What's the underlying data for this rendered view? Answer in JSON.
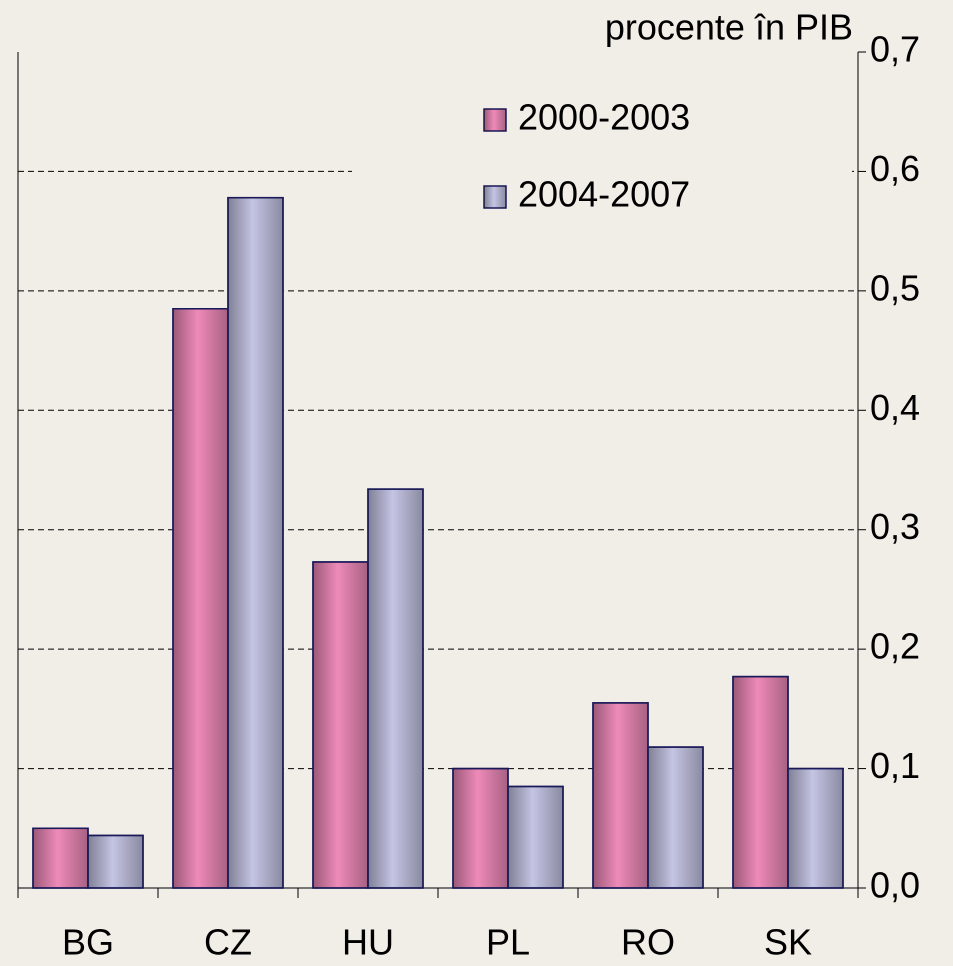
{
  "chart_data": {
    "type": "bar",
    "y_axis_label": "procente în PIB",
    "categories": [
      "BG",
      "CZ",
      "HU",
      "PL",
      "RO",
      "SK"
    ],
    "series": [
      {
        "name": "2000-2003",
        "color": "#ee8ab9",
        "values": [
          0.05,
          0.485,
          0.273,
          0.1,
          0.155,
          0.177
        ]
      },
      {
        "name": "2004-2007",
        "color": "#c4c4e4",
        "values": [
          0.044,
          0.578,
          0.334,
          0.085,
          0.118,
          0.1
        ]
      }
    ],
    "ylim": [
      0,
      0.7
    ],
    "yticks": [
      {
        "value": 0,
        "label": "0,0"
      },
      {
        "value": 0.1,
        "label": "0,1"
      },
      {
        "value": 0.2,
        "label": "0,2"
      },
      {
        "value": 0.3,
        "label": "0,3"
      },
      {
        "value": 0.4,
        "label": "0,4"
      },
      {
        "value": 0.5,
        "label": "0,5"
      },
      {
        "value": 0.6,
        "label": "0,6"
      },
      {
        "value": 0.7,
        "label": "0,7"
      }
    ],
    "grid": true,
    "legend_position": "top-right"
  }
}
